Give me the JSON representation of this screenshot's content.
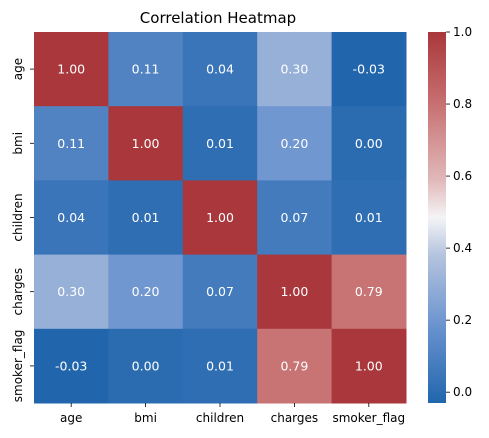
{
  "chart_data": {
    "type": "heatmap",
    "title": "Correlation Heatmap",
    "xlabel": "",
    "ylabel": "",
    "x_categories": [
      "age",
      "bmi",
      "children",
      "charges",
      "smoker_flag"
    ],
    "y_categories": [
      "age",
      "bmi",
      "children",
      "charges",
      "smoker_flag"
    ],
    "values": [
      [
        1.0,
        0.11,
        0.04,
        0.3,
        -0.03
      ],
      [
        0.11,
        1.0,
        0.01,
        0.2,
        0.0
      ],
      [
        0.04,
        0.01,
        1.0,
        0.07,
        0.01
      ],
      [
        0.3,
        0.2,
        0.07,
        1.0,
        0.79
      ],
      [
        -0.03,
        0.0,
        0.01,
        0.79,
        1.0
      ]
    ],
    "cell_labels": [
      [
        "1.00",
        "0.11",
        "0.04",
        "0.30",
        "-0.03"
      ],
      [
        "0.11",
        "1.00",
        "0.01",
        "0.20",
        "0.00"
      ],
      [
        "0.04",
        "0.01",
        "1.00",
        "0.07",
        "0.01"
      ],
      [
        "0.30",
        "0.20",
        "0.07",
        "1.00",
        "0.79"
      ],
      [
        "-0.03",
        "0.00",
        "0.01",
        "0.79",
        "1.00"
      ]
    ],
    "colormap": "vlag",
    "color_range": [
      -0.03,
      1.0
    ],
    "colorbar": {
      "ticks": [
        0.0,
        0.2,
        0.4,
        0.6,
        0.8,
        1.0
      ],
      "tick_labels": [
        "0.0",
        "0.2",
        "0.4",
        "0.6",
        "0.8",
        "1.0"
      ]
    },
    "grid": false
  }
}
